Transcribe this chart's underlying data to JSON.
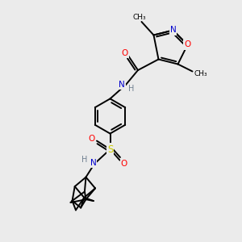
{
  "bg_color": "#ebebeb",
  "bond_color": "#000000",
  "atom_colors": {
    "O": "#ff0000",
    "N": "#0000cd",
    "S": "#cccc00",
    "H": "#708090",
    "C": "#000000"
  },
  "lw": 1.4
}
